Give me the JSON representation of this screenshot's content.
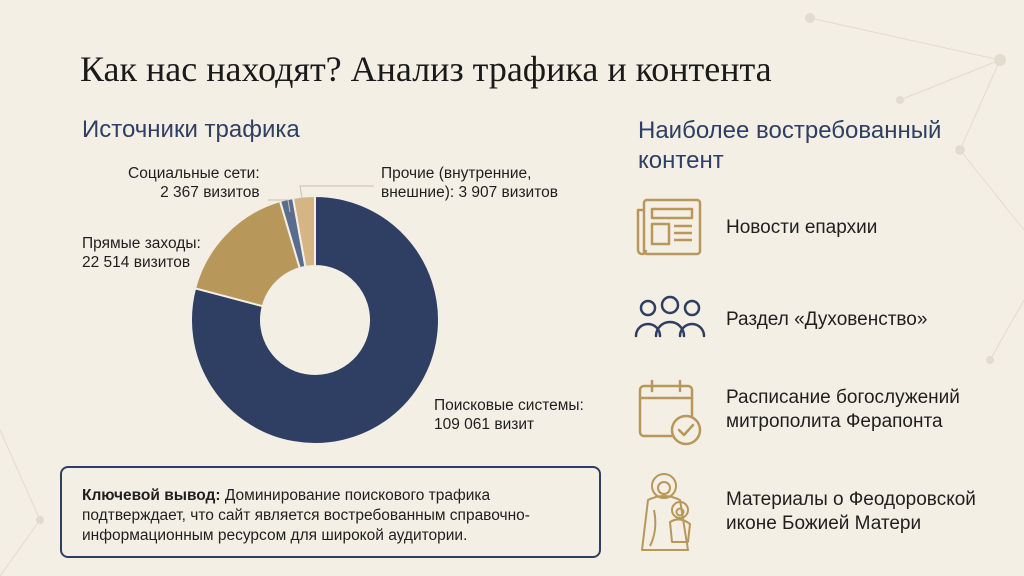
{
  "title": "Как нас находят? Анализ трафика и контента",
  "traffic_heading": "Источники трафика",
  "content_heading_lines": [
    "Наиболее востребованный",
    "контент"
  ],
  "chart_data": {
    "type": "pie",
    "donut": true,
    "slices": [
      {
        "label_lines": [
          "Поисковые системы:",
          "109 061 визит"
        ],
        "value": 109061,
        "color": "#2e3f63"
      },
      {
        "label_lines": [
          "Прямые заходы:",
          "22 514 визитов"
        ],
        "value": 22514,
        "color": "#b8975a"
      },
      {
        "label_lines": [
          "Социальные сети:",
          "2 367 визитов"
        ],
        "value": 2367,
        "color": "#5a6d91"
      },
      {
        "label_lines": [
          "Прочие (внутренние,",
          "внешние): 3 907 визитов"
        ],
        "value": 3907,
        "color": "#d4b583"
      }
    ]
  },
  "conclusion": {
    "lead": "Ключевой вывод:",
    "text": " Доминирование поискового трафика подтверждает, что сайт является востребованным справочно-информационным ресурсом для широкой аудитории."
  },
  "content_items": [
    {
      "icon": "newspaper-icon",
      "lines": [
        "Новости епархии"
      ]
    },
    {
      "icon": "people-icon",
      "lines": [
        "Раздел «Духовенство»"
      ]
    },
    {
      "icon": "calendar-check-icon",
      "lines": [
        "Расписание богослужений",
        "митрополита Ферапонта"
      ]
    },
    {
      "icon": "icon-image",
      "lines": [
        "Материалы о Феодоровской",
        "иконе Божией Матери"
      ]
    }
  ],
  "colors": {
    "accent": "#2e3f63",
    "gold": "#b8975a",
    "background": "#f4efe4"
  }
}
